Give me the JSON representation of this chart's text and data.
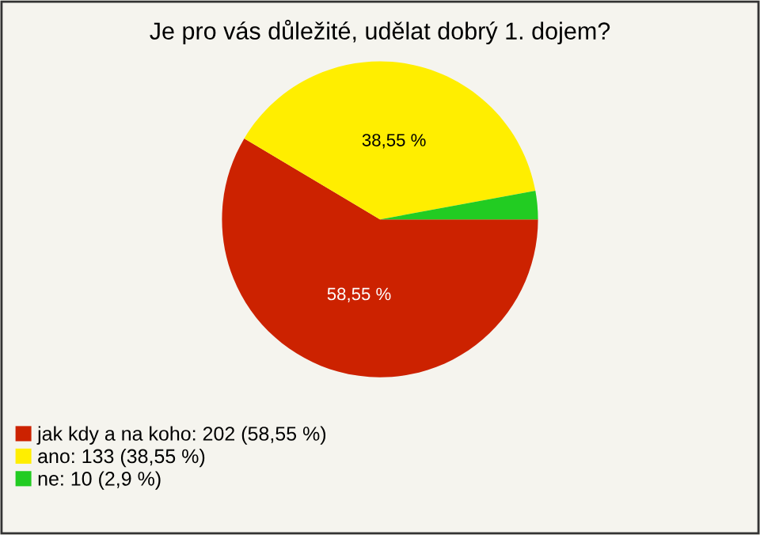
{
  "chart_data": {
    "type": "pie",
    "title": "Je pro vás důležité, udělat dobrý 1. dojem?",
    "categories": [
      "jak kdy a na koho: 202 (58,55 %)",
      "ano: 133 (38,55 %)",
      "ne: 10 (2,9 %)"
    ],
    "values": [
      58.55,
      38.55,
      2.9
    ],
    "colors": [
      "#cc2200",
      "#ffee00",
      "#22cc22"
    ],
    "value_labels": [
      "58,55 %",
      "38,55 %",
      null
    ],
    "legend": "bottom left"
  }
}
